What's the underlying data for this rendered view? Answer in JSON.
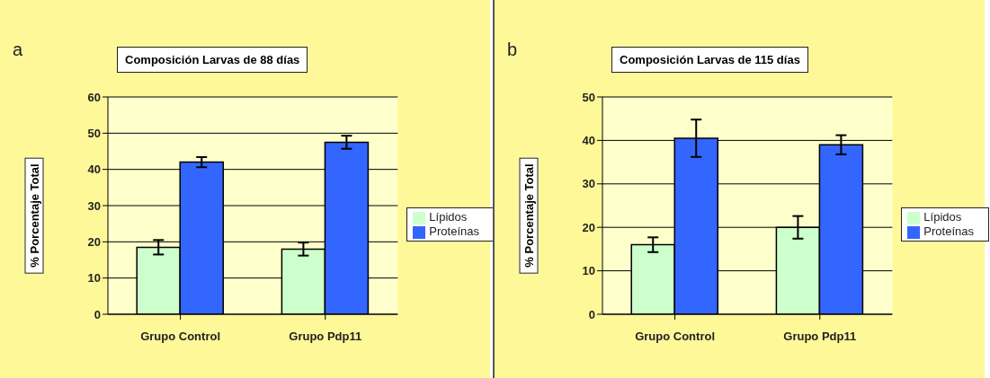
{
  "chart_data": [
    {
      "type": "bar",
      "title": "Composición Larvas de 88 días",
      "ylabel": "% Porcentaje Total",
      "annotations": [
        "a"
      ],
      "categories": [
        "Grupo Control",
        "Grupo Pdp11"
      ],
      "series": [
        {
          "name": "Lípidos",
          "color": "#ccffcc",
          "values": [
            18.5,
            18
          ],
          "errors": [
            2,
            1.8
          ]
        },
        {
          "name": "Proteínas",
          "color": "#3366ff",
          "values": [
            42,
            47.5
          ],
          "errors": [
            1.4,
            1.8
          ]
        }
      ],
      "ylim": [
        0,
        60
      ],
      "yticks": [
        0,
        10,
        20,
        30,
        40,
        50,
        60
      ],
      "grid": "y",
      "legend": "right"
    },
    {
      "type": "bar",
      "title": "Composición  Larvas de 115 días",
      "ylabel": "% Porcentaje Total",
      "annotations": [
        "b"
      ],
      "categories": [
        "Grupo Control",
        "Grupo Pdp11"
      ],
      "series": [
        {
          "name": "Lípidos",
          "color": "#ccffcc",
          "values": [
            16,
            20
          ],
          "errors": [
            1.7,
            2.6
          ]
        },
        {
          "name": "Proteínas",
          "color": "#3366ff",
          "values": [
            40.5,
            39
          ],
          "errors": [
            4.3,
            2.2
          ]
        }
      ],
      "ylim": [
        0,
        50
      ],
      "yticks": [
        0,
        10,
        20,
        30,
        40,
        50
      ],
      "grid": "y",
      "legend": "right"
    }
  ]
}
